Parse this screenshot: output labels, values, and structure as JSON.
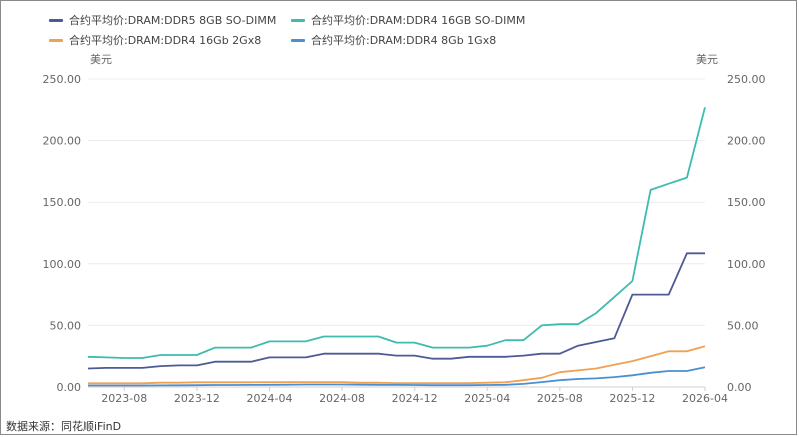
{
  "source": "数据来源：同花顺iFinD",
  "chart_data": {
    "type": "line",
    "units": {
      "left": "美元",
      "right": "美元"
    },
    "ylim": [
      0,
      250
    ],
    "yticks": [
      0,
      50,
      100,
      150,
      200,
      250
    ],
    "ytick_labels": [
      "0.00",
      "50.00",
      "100.00",
      "150.00",
      "200.00",
      "250.00"
    ],
    "xlim": [
      "2023-06",
      "2026-04"
    ],
    "xticks": [
      "2023-08",
      "2023-12",
      "2024-04",
      "2024-08",
      "2024-12",
      "2025-04",
      "2025-08",
      "2025-12",
      "2026-04"
    ],
    "x": [
      "2023-06",
      "2023-07",
      "2023-08",
      "2023-09",
      "2023-10",
      "2023-11",
      "2023-12",
      "2024-01",
      "2024-02",
      "2024-03",
      "2024-04",
      "2024-05",
      "2024-06",
      "2024-07",
      "2024-08",
      "2024-09",
      "2024-10",
      "2024-11",
      "2024-12",
      "2025-01",
      "2025-02",
      "2025-03",
      "2025-04",
      "2025-05",
      "2025-06",
      "2025-07",
      "2025-08",
      "2025-09",
      "2025-10",
      "2025-11",
      "2025-12",
      "2026-01",
      "2026-02",
      "2026-03",
      "2026-04"
    ],
    "grid": true,
    "legend_position": "top",
    "series": [
      {
        "name": "合约平均价:DRAM:DDR5 8GB SO-DIMM",
        "color": "#4d5a95",
        "values": [
          15,
          15.5,
          15.5,
          15.5,
          17,
          17.5,
          17.5,
          20.5,
          20.5,
          20.5,
          24,
          24,
          24,
          27,
          27,
          27,
          27,
          25.5,
          25.5,
          23,
          23,
          24.5,
          24.5,
          24.5,
          25.5,
          27,
          27,
          33.5,
          36.5,
          39.5,
          75,
          75,
          75,
          108.5,
          108.5
        ]
      },
      {
        "name": "合约平均价:DRAM:DDR4 16GB SO-DIMM",
        "color": "#3dbcad",
        "values": [
          24.5,
          24,
          23.5,
          23.5,
          26,
          26,
          26,
          32,
          32,
          32,
          37,
          37,
          37,
          41,
          41,
          41,
          41,
          36,
          36,
          32,
          32,
          32,
          33.5,
          38,
          38,
          50,
          51,
          51,
          60,
          73,
          86,
          160,
          165,
          170,
          227
        ]
      },
      {
        "name": "合约平均价:DRAM:DDR4 16Gb 2Gx8",
        "color": "#f0a050",
        "values": [
          3,
          3,
          3,
          3,
          3.5,
          3.5,
          3.8,
          3.8,
          3.8,
          3.8,
          4,
          4,
          4,
          4,
          4,
          3.5,
          3.5,
          3.2,
          3.2,
          3.2,
          3.2,
          3.2,
          3.5,
          3.8,
          5.5,
          7.5,
          12,
          13.5,
          15,
          18,
          21,
          25,
          29,
          29,
          33
        ]
      },
      {
        "name": "合约平均价:DRAM:DDR4 8Gb 1Gx8",
        "color": "#4a8fd0",
        "values": [
          1.2,
          1.2,
          1.2,
          1.2,
          1.3,
          1.4,
          1.5,
          1.6,
          1.6,
          1.7,
          1.8,
          1.9,
          2,
          2,
          2,
          1.9,
          1.8,
          1.7,
          1.6,
          1.5,
          1.5,
          1.5,
          1.6,
          1.8,
          2.5,
          4,
          5.5,
          6.5,
          7,
          8,
          9.5,
          11.5,
          13,
          13,
          16
        ]
      }
    ]
  }
}
